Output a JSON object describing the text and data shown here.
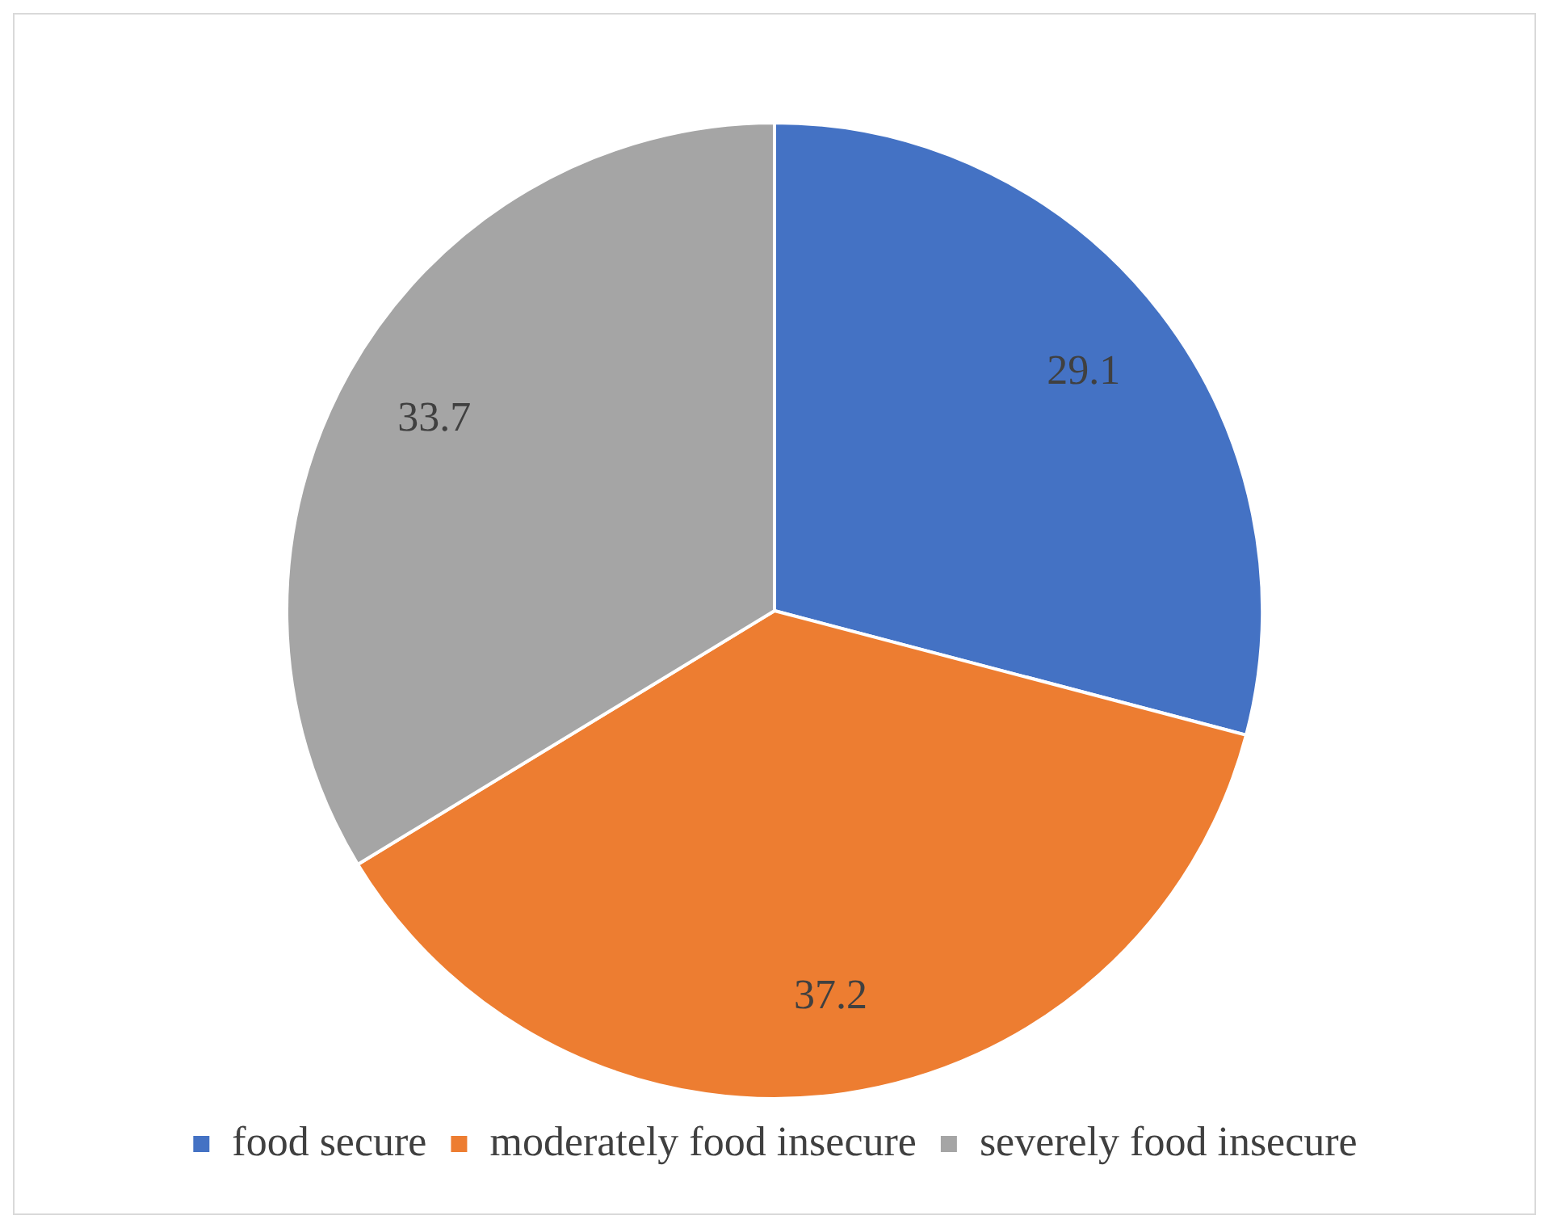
{
  "chart_data": {
    "type": "pie",
    "categories": [
      "food secure",
      "moderately food insecure",
      "severely food insecure"
    ],
    "values": [
      29.1,
      37.2,
      33.7
    ],
    "colors": [
      "#4472c4",
      "#ed7d31",
      "#a5a5a5"
    ],
    "data_labels": true,
    "legend": "bottom"
  }
}
